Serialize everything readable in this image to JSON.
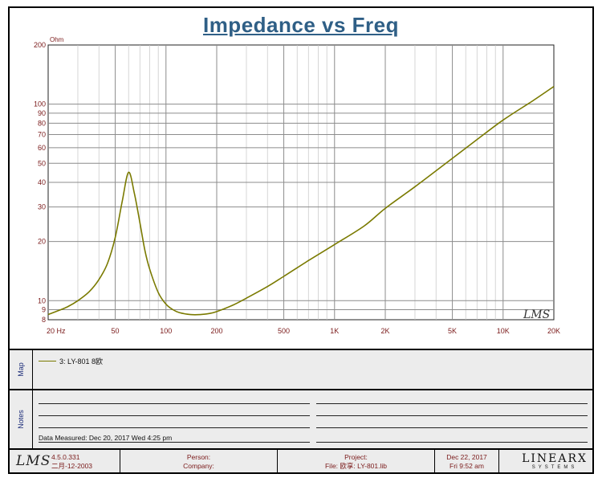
{
  "chart_data": {
    "type": "line",
    "title": "Impedance vs Freq",
    "ylabel": "Ohm",
    "x_scale": "log",
    "y_scale": "log",
    "xlim": [
      20,
      20000
    ],
    "ylim": [
      8,
      200
    ],
    "x_ticks": [
      {
        "value": 20,
        "label": "20 Hz"
      },
      {
        "value": 50,
        "label": "50"
      },
      {
        "value": 100,
        "label": "100"
      },
      {
        "value": 200,
        "label": "200"
      },
      {
        "value": 500,
        "label": "500"
      },
      {
        "value": 1000,
        "label": "1K"
      },
      {
        "value": 2000,
        "label": "2K"
      },
      {
        "value": 5000,
        "label": "5K"
      },
      {
        "value": 10000,
        "label": "10K"
      },
      {
        "value": 20000,
        "label": "20K"
      }
    ],
    "y_ticks": [
      {
        "value": 200,
        "label": "200"
      },
      {
        "value": 100,
        "label": "100"
      },
      {
        "value": 90,
        "label": "90"
      },
      {
        "value": 80,
        "label": "80"
      },
      {
        "value": 70,
        "label": "70"
      },
      {
        "value": 60,
        "label": "60"
      },
      {
        "value": 50,
        "label": "50"
      },
      {
        "value": 40,
        "label": "40"
      },
      {
        "value": 30,
        "label": "30"
      },
      {
        "value": 20,
        "label": "20"
      },
      {
        "value": 10,
        "label": "10"
      },
      {
        "value": 9,
        "label": "9"
      },
      {
        "value": 8,
        "label": "8"
      }
    ],
    "grid": true,
    "series": [
      {
        "name": "3: LY-801 8欧",
        "color": "#7a7a00",
        "x": [
          20,
          23,
          26,
          30,
          35,
          40,
          45,
          50,
          55,
          60,
          65,
          70,
          75,
          80,
          90,
          100,
          110,
          120,
          140,
          160,
          180,
          200,
          250,
          300,
          400,
          500,
          700,
          1000,
          1500,
          2000,
          3000,
          5000,
          7000,
          10000,
          15000,
          20000
        ],
        "y": [
          8.5,
          8.9,
          9.3,
          10.0,
          11.1,
          12.8,
          15.5,
          21,
          32,
          45,
          35,
          25,
          18,
          14.5,
          11,
          9.6,
          9.0,
          8.7,
          8.5,
          8.5,
          8.6,
          8.8,
          9.5,
          10.3,
          11.8,
          13.3,
          16,
          19.3,
          24,
          29.5,
          38,
          53,
          66,
          83,
          104,
          123
        ]
      }
    ],
    "watermark": "LMS"
  },
  "map_panel": {
    "side_label": "Map",
    "legend_text": "3: LY-801 8欧"
  },
  "notes_panel": {
    "side_label": "Notes",
    "date_measured": "Data Measured: Dec 20, 2017  Wed  4:25 pm"
  },
  "footer": {
    "logo": "LMS",
    "version": "4.5.0.331",
    "version_date": "二月-12-2003",
    "person_label": "Person:",
    "company_label": "Company:",
    "project_label": "Project:",
    "file_label": "File: 欧享: LY-801.lib",
    "date": "Dec 22, 2017",
    "time": "Fri  9:52 am",
    "brand_main": "LINEARX",
    "brand_sub": "SYSTEMS"
  }
}
